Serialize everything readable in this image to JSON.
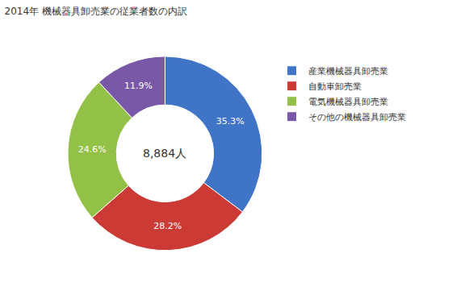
{
  "chart_data": {
    "type": "pie",
    "title": "2014年 機械器具卸売業の従業者数の内訳",
    "categories": [
      "産業機械器具卸売業",
      "自動車卸売業",
      "電気機械器具卸売業",
      "その他の機械器具卸売業"
    ],
    "values": [
      35.3,
      28.2,
      24.6,
      11.9
    ],
    "value_labels": [
      "35.3%",
      "28.2%",
      "24.6%",
      "11.9%"
    ],
    "colors": [
      "#3f74c6",
      "#cc3a36",
      "#93c047",
      "#7a58a8"
    ],
    "data_labels": true,
    "legend": "right",
    "annotations": [
      "8,884人"
    ]
  }
}
